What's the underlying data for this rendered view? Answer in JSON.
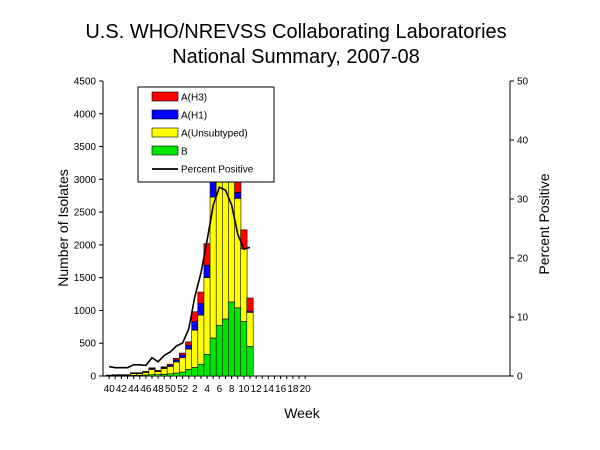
{
  "chart_data": {
    "type": "bar",
    "title": [
      "U.S. WHO/NREVSS Collaborating Laboratories",
      "National Summary, 2007-08"
    ],
    "xlabel": "Week",
    "ylabel": "Number of Isolates",
    "y2label": "Percent Positive",
    "ylim": [
      0,
      4500
    ],
    "y2lim": [
      0,
      50
    ],
    "yticks": [
      "0",
      "500",
      "1000",
      "1500",
      "2000",
      "2500",
      "3000",
      "3500",
      "4000",
      "4500"
    ],
    "y2ticks": [
      "0",
      "10",
      "20",
      "30",
      "40",
      "50"
    ],
    "xticks": [
      "40",
      "42",
      "44",
      "46",
      "48",
      "50",
      "52",
      "2",
      "4",
      "6",
      "8",
      "10",
      "12",
      "14",
      "16",
      "18",
      "20"
    ],
    "categories": [
      "40",
      "41",
      "42",
      "43",
      "44",
      "45",
      "46",
      "47",
      "48",
      "49",
      "50",
      "51",
      "52",
      "1",
      "2",
      "3",
      "4",
      "5",
      "6",
      "7",
      "8",
      "9",
      "10",
      "11",
      "12",
      "13",
      "14",
      "15",
      "16",
      "17",
      "18",
      "19",
      "20"
    ],
    "stacked": true,
    "grid": false,
    "legend_position": "top-left",
    "series": [
      {
        "name": "B",
        "color": "#00e600",
        "values": [
          5,
          5,
          5,
          5,
          10,
          10,
          15,
          20,
          20,
          25,
          35,
          45,
          60,
          100,
          130,
          180,
          330,
          580,
          770,
          870,
          1130,
          1040,
          830,
          450,
          0,
          0,
          0,
          0,
          0,
          0,
          0,
          0,
          0
        ]
      },
      {
        "name": "A(Unsubtyped)",
        "color": "#ffff00",
        "values": [
          5,
          10,
          10,
          10,
          30,
          30,
          40,
          80,
          50,
          90,
          110,
          170,
          220,
          310,
          570,
          750,
          1170,
          2150,
          2570,
          2820,
          2310,
          1670,
          1110,
          520,
          0,
          0,
          0,
          0,
          0,
          0,
          0,
          0,
          0
        ]
      },
      {
        "name": "A(H1)",
        "color": "#0000ff",
        "values": [
          2,
          3,
          3,
          3,
          5,
          5,
          10,
          15,
          10,
          15,
          20,
          30,
          40,
          60,
          130,
          180,
          190,
          230,
          200,
          130,
          130,
          90,
          0,
          20,
          0,
          0,
          0,
          0,
          0,
          0,
          0,
          0,
          0
        ]
      },
      {
        "name": "A(H3)",
        "color": "#ff0000",
        "values": [
          1,
          2,
          2,
          2,
          5,
          5,
          5,
          10,
          5,
          10,
          15,
          25,
          30,
          50,
          150,
          170,
          330,
          590,
          750,
          170,
          790,
          650,
          290,
          200,
          0,
          0,
          0,
          0,
          0,
          0,
          0,
          0,
          0
        ]
      }
    ],
    "line_series": {
      "name": "Percent Positive",
      "color": "#000000",
      "values": [
        1.6,
        1.4,
        1.4,
        1.4,
        1.9,
        1.9,
        1.8,
        3.1,
        2.4,
        3.5,
        4.1,
        5.1,
        5.6,
        8.0,
        13.5,
        17.5,
        23.0,
        29.0,
        32.0,
        31.5,
        29.0,
        24.0,
        21.5,
        21.8,
        null,
        null,
        null,
        null,
        null,
        null,
        null,
        null,
        null
      ]
    }
  }
}
